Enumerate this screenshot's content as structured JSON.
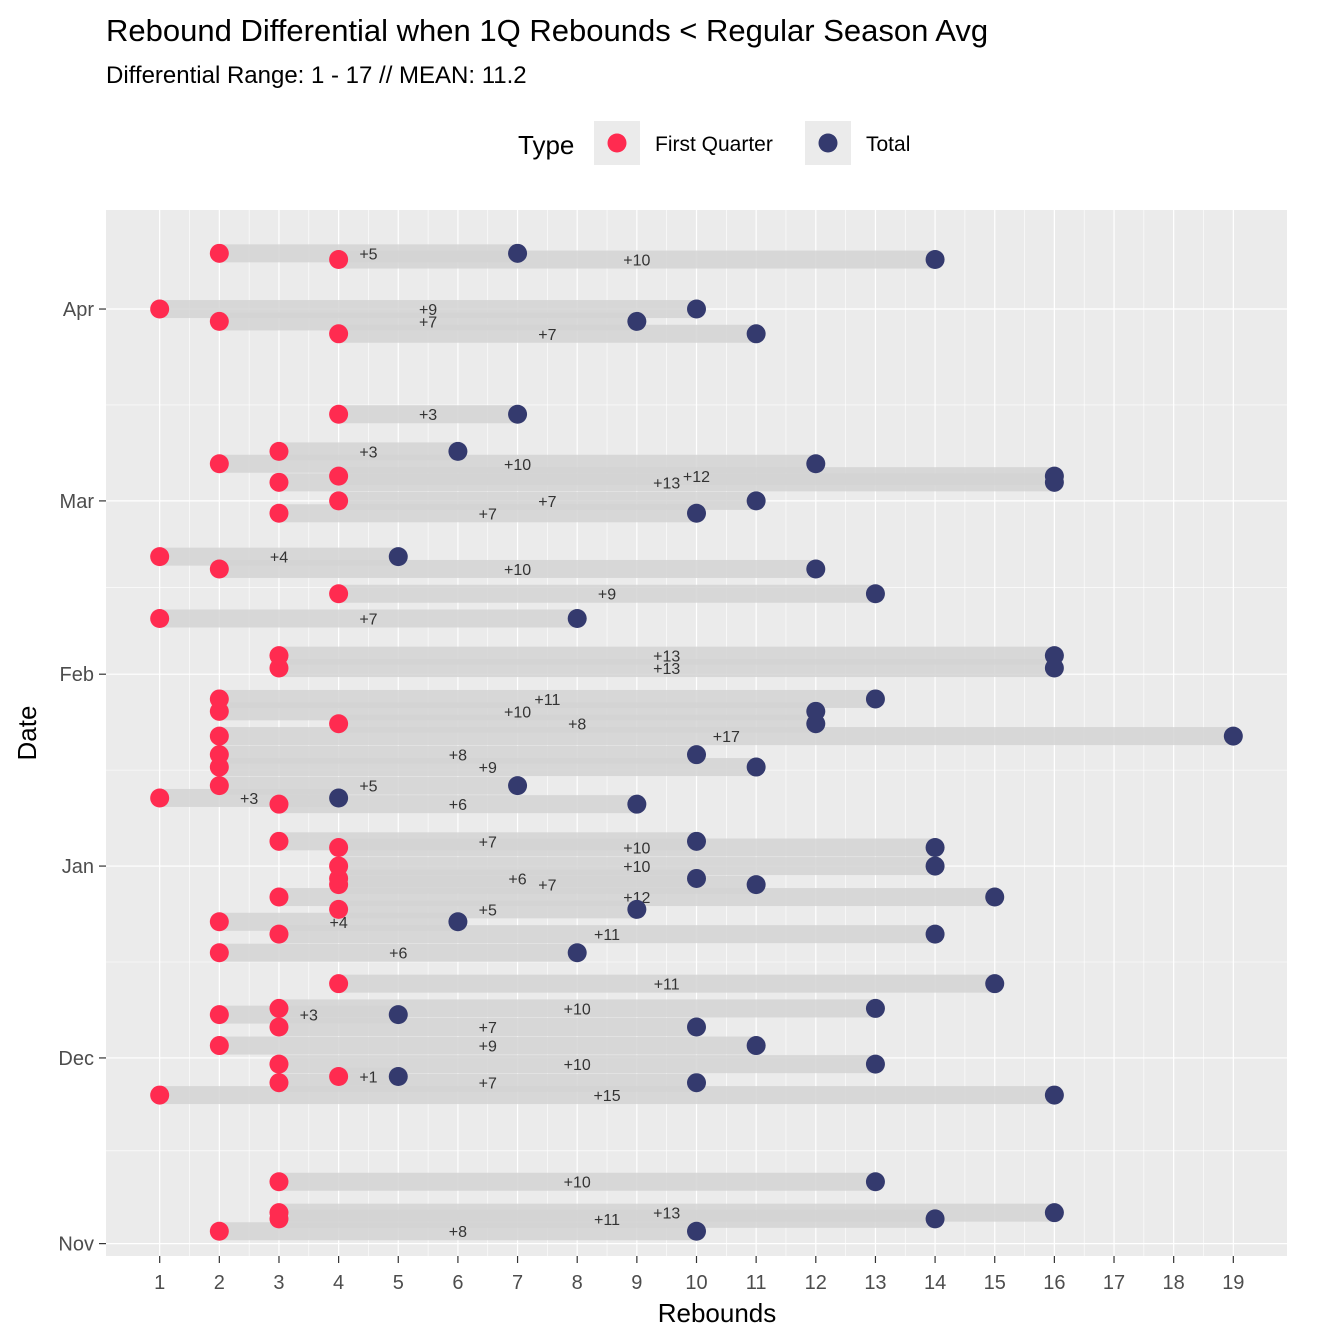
{
  "chart_data": {
    "type": "dumbbell",
    "title": "Rebound Differential when 1Q Rebounds < Regular Season Avg",
    "subtitle": "Differential Range:  1 - 17 // MEAN: 11.2",
    "xlabel": "Rebounds",
    "ylabel": "Date",
    "xlim": [
      0.1,
      19.9
    ],
    "ylim": [
      "2021-10-30",
      "2022-04-17"
    ],
    "x_ticks": [
      1,
      2,
      3,
      4,
      5,
      6,
      7,
      8,
      9,
      10,
      11,
      12,
      13,
      14,
      15,
      16,
      17,
      18,
      19
    ],
    "y_ticks": [
      {
        "label": "Nov",
        "date": "2021-11-01"
      },
      {
        "label": "Dec",
        "date": "2021-12-01"
      },
      {
        "label": "Jan",
        "date": "2022-01-01"
      },
      {
        "label": "Feb",
        "date": "2022-02-01"
      },
      {
        "label": "Mar",
        "date": "2022-03-01"
      },
      {
        "label": "Apr",
        "date": "2022-04-01"
      }
    ],
    "legend": {
      "title": "Type",
      "position": "top",
      "entries": [
        {
          "name": "First Quarter",
          "color": "#FF2B50"
        },
        {
          "name": "Total",
          "color": "#343A6E"
        }
      ]
    },
    "colors": {
      "first_quarter": "#FF2B50",
      "total": "#343A6E",
      "bar": "#D4D4D4",
      "panel": "#EBEBEB",
      "grid": "#FFFFFF"
    },
    "grid": true,
    "games": [
      {
        "date": "2021-11-03",
        "first_quarter": 2,
        "total": 10,
        "label": "+8"
      },
      {
        "date": "2021-11-05",
        "first_quarter": 3,
        "total": 14,
        "label": "+11"
      },
      {
        "date": "2021-11-06",
        "first_quarter": 3,
        "total": 16,
        "label": "+13"
      },
      {
        "date": "2021-11-11",
        "first_quarter": 3,
        "total": 13,
        "label": "+10"
      },
      {
        "date": "2021-11-25",
        "first_quarter": 1,
        "total": 16,
        "label": "+15"
      },
      {
        "date": "2021-11-27",
        "first_quarter": 3,
        "total": 10,
        "label": "+7"
      },
      {
        "date": "2021-11-28",
        "first_quarter": 4,
        "total": 5,
        "label": "+1"
      },
      {
        "date": "2021-11-30",
        "first_quarter": 3,
        "total": 13,
        "label": "+10"
      },
      {
        "date": "2021-12-03",
        "first_quarter": 2,
        "total": 11,
        "label": "+9"
      },
      {
        "date": "2021-12-06",
        "first_quarter": 3,
        "total": 10,
        "label": "+7"
      },
      {
        "date": "2021-12-08",
        "first_quarter": 2,
        "total": 5,
        "label": "+3"
      },
      {
        "date": "2021-12-09",
        "first_quarter": 3,
        "total": 13,
        "label": "+10"
      },
      {
        "date": "2021-12-13",
        "first_quarter": 4,
        "total": 15,
        "label": "+11"
      },
      {
        "date": "2021-12-18",
        "first_quarter": 2,
        "total": 8,
        "label": "+6"
      },
      {
        "date": "2021-12-21",
        "first_quarter": 3,
        "total": 14,
        "label": "+11"
      },
      {
        "date": "2021-12-23",
        "first_quarter": 2,
        "total": 6,
        "label": "+4"
      },
      {
        "date": "2021-12-25",
        "first_quarter": 4,
        "total": 9,
        "label": "+5"
      },
      {
        "date": "2021-12-27",
        "first_quarter": 3,
        "total": 15,
        "label": "+12"
      },
      {
        "date": "2021-12-29",
        "first_quarter": 4,
        "total": 11,
        "label": "+7"
      },
      {
        "date": "2021-12-30",
        "first_quarter": 4,
        "total": 10,
        "label": "+6"
      },
      {
        "date": "2022-01-01",
        "first_quarter": 4,
        "total": 14,
        "label": "+10"
      },
      {
        "date": "2022-01-04",
        "first_quarter": 4,
        "total": 14,
        "label": "+10"
      },
      {
        "date": "2022-01-05",
        "first_quarter": 3,
        "total": 10,
        "label": "+7"
      },
      {
        "date": "2022-01-11",
        "first_quarter": 3,
        "total": 9,
        "label": "+6"
      },
      {
        "date": "2022-01-12",
        "first_quarter": 1,
        "total": 4,
        "label": "+3"
      },
      {
        "date": "2022-01-14",
        "first_quarter": 2,
        "total": 7,
        "label": "+5"
      },
      {
        "date": "2022-01-17",
        "first_quarter": 2,
        "total": 11,
        "label": "+9"
      },
      {
        "date": "2022-01-19",
        "first_quarter": 2,
        "total": 10,
        "label": "+8"
      },
      {
        "date": "2022-01-22",
        "first_quarter": 2,
        "total": 19,
        "label": "+17"
      },
      {
        "date": "2022-01-24",
        "first_quarter": 4,
        "total": 12,
        "label": "+8"
      },
      {
        "date": "2022-01-26",
        "first_quarter": 2,
        "total": 12,
        "label": "+10"
      },
      {
        "date": "2022-01-28",
        "first_quarter": 2,
        "total": 13,
        "label": "+11"
      },
      {
        "date": "2022-02-02",
        "first_quarter": 3,
        "total": 16,
        "label": "+13"
      },
      {
        "date": "2022-02-04",
        "first_quarter": 3,
        "total": 16,
        "label": "+13"
      },
      {
        "date": "2022-02-10",
        "first_quarter": 1,
        "total": 8,
        "label": "+7"
      },
      {
        "date": "2022-02-14",
        "first_quarter": 4,
        "total": 13,
        "label": "+9"
      },
      {
        "date": "2022-02-18",
        "first_quarter": 2,
        "total": 12,
        "label": "+10"
      },
      {
        "date": "2022-02-20",
        "first_quarter": 1,
        "total": 5,
        "label": "+4"
      },
      {
        "date": "2022-03-05",
        "first_quarter": 4,
        "total": 16,
        "label": "+12"
      },
      {
        "date": "2022-03-01",
        "first_quarter": 4,
        "total": 11,
        "label": "+7"
      },
      {
        "date": "2022-02-27",
        "first_quarter": 3,
        "total": 10,
        "label": "+7"
      },
      {
        "date": "2022-03-04",
        "first_quarter": 3,
        "total": 16,
        "label": "+13"
      },
      {
        "date": "2022-03-07",
        "first_quarter": 2,
        "total": 12,
        "label": "+10"
      },
      {
        "date": "2022-03-09",
        "first_quarter": 3,
        "total": 6,
        "label": "+3"
      },
      {
        "date": "2022-03-15",
        "first_quarter": 4,
        "total": 7,
        "label": "+3"
      },
      {
        "date": "2022-03-28",
        "first_quarter": 4,
        "total": 11,
        "label": "+7"
      },
      {
        "date": "2022-03-30",
        "first_quarter": 2,
        "total": 9,
        "label": "+7"
      },
      {
        "date": "2022-04-01",
        "first_quarter": 1,
        "total": 10,
        "label": "+9"
      },
      {
        "date": "2022-04-09",
        "first_quarter": 4,
        "total": 14,
        "label": "+10"
      },
      {
        "date": "2022-04-10",
        "first_quarter": 2,
        "total": 7,
        "label": "+5"
      }
    ]
  }
}
